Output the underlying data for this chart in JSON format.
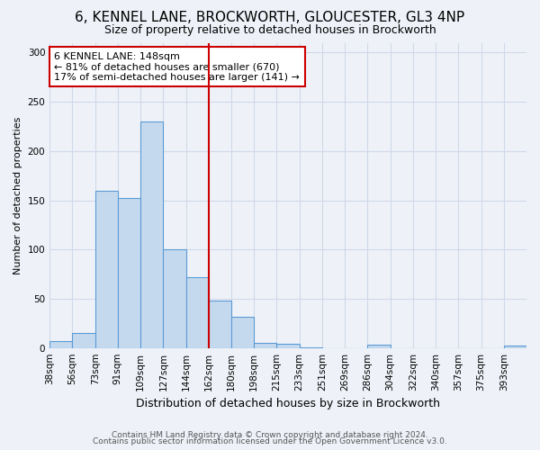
{
  "title1": "6, KENNEL LANE, BROCKWORTH, GLOUCESTER, GL3 4NP",
  "title2": "Size of property relative to detached houses in Brockworth",
  "xlabel": "Distribution of detached houses by size in Brockworth",
  "ylabel": "Number of detached properties",
  "categories": [
    "38sqm",
    "56sqm",
    "73sqm",
    "91sqm",
    "109sqm",
    "127sqm",
    "144sqm",
    "162sqm",
    "180sqm",
    "198sqm",
    "215sqm",
    "233sqm",
    "251sqm",
    "269sqm",
    "286sqm",
    "304sqm",
    "322sqm",
    "340sqm",
    "357sqm",
    "375sqm",
    "393sqm"
  ],
  "values": [
    7,
    15,
    160,
    152,
    230,
    100,
    72,
    48,
    32,
    5,
    4,
    1,
    0,
    0,
    3,
    0,
    0,
    0,
    0,
    0,
    2
  ],
  "bar_color": "#c5d9ee",
  "bar_edge_color": "#5b9bd5",
  "grid_color": "#d0d8e8",
  "vline_x_index": 6,
  "annotation_box_text": "6 KENNEL LANE: 148sqm\n← 81% of detached houses are smaller (670)\n17% of semi-detached houses are larger (141) →",
  "annotation_box_color": "#ffffff",
  "annotation_box_edge_color": "#cc0000",
  "vline_color": "#cc0000",
  "footnote1": "Contains HM Land Registry data © Crown copyright and database right 2024.",
  "footnote2": "Contains public sector information licensed under the Open Government Licence v3.0.",
  "ylim": [
    0,
    310
  ],
  "yticks": [
    0,
    50,
    100,
    150,
    200,
    250,
    300
  ],
  "background_color": "#eef2f8",
  "title1_fontsize": 11,
  "title2_fontsize": 9,
  "xlabel_fontsize": 9,
  "ylabel_fontsize": 8,
  "tick_fontsize": 7.5,
  "footnote_fontsize": 6.5
}
